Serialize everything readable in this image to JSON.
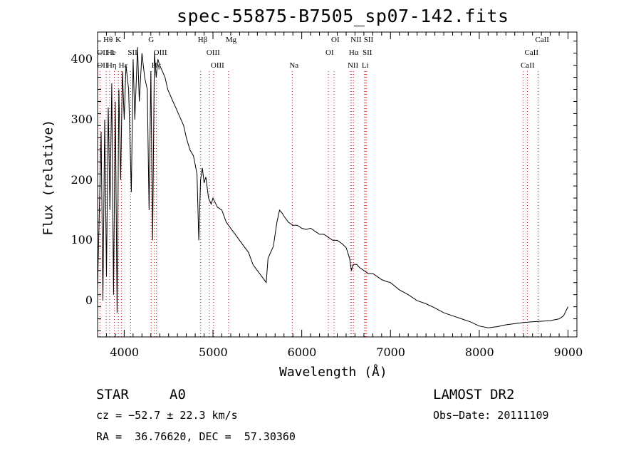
{
  "chart_data": {
    "type": "line",
    "title": "spec-55875-B7505_sp07-142.fits",
    "xlabel": "Wavelength (Å)",
    "ylabel": "Flux (relative)",
    "xlim": [
      3700,
      9100
    ],
    "ylim": [
      -60,
      445
    ],
    "x_ticks": [
      4000,
      5000,
      6000,
      7000,
      8000,
      9000
    ],
    "y_ticks": [
      0,
      100,
      200,
      300,
      400
    ],
    "grid": false,
    "series": [
      {
        "x": [
          3700,
          3740,
          3760,
          3780,
          3800,
          3820,
          3840,
          3860,
          3880,
          3900,
          3920,
          3940,
          3960,
          3980,
          4000,
          4020,
          4050,
          4080,
          4100,
          4120,
          4150,
          4170,
          4200,
          4230,
          4260,
          4280,
          4300,
          4320,
          4340,
          4360,
          4380,
          4400,
          4430,
          4460,
          4490,
          4520,
          4550,
          4580,
          4610,
          4640,
          4670,
          4700,
          4740,
          4780,
          4820,
          4840,
          4860,
          4880,
          4900,
          4920,
          4950,
          4980,
          5000,
          5050,
          5100,
          5150,
          5200,
          5250,
          5300,
          5350,
          5400,
          5450,
          5500,
          5550,
          5600,
          5620,
          5650,
          5680,
          5700,
          5720,
          5750,
          5780,
          5800,
          5850,
          5900,
          5950,
          6000,
          6050,
          6100,
          6150,
          6200,
          6250,
          6300,
          6350,
          6400,
          6450,
          6500,
          6540,
          6560,
          6580,
          6620,
          6650,
          6700,
          6750,
          6800,
          6850,
          6900,
          6950,
          7000,
          7100,
          7200,
          7300,
          7400,
          7500,
          7600,
          7700,
          7800,
          7900,
          8000,
          8100,
          8200,
          8300,
          8400,
          8500,
          8600,
          8700,
          8800,
          8900,
          8950,
          9000
        ],
        "y": [
          20,
          280,
          0,
          300,
          40,
          320,
          150,
          360,
          10,
          330,
          -20,
          350,
          200,
          380,
          300,
          390,
          350,
          180,
          400,
          300,
          420,
          330,
          410,
          370,
          350,
          150,
          380,
          100,
          410,
          370,
          400,
          390,
          380,
          370,
          350,
          340,
          330,
          320,
          310,
          300,
          290,
          270,
          250,
          240,
          210,
          100,
          200,
          220,
          195,
          205,
          170,
          160,
          170,
          155,
          150,
          130,
          120,
          110,
          100,
          90,
          80,
          60,
          50,
          40,
          30,
          70,
          80,
          90,
          110,
          130,
          150,
          145,
          140,
          130,
          125,
          125,
          120,
          118,
          120,
          115,
          110,
          110,
          105,
          100,
          100,
          95,
          88,
          70,
          50,
          60,
          60,
          55,
          50,
          45,
          45,
          40,
          35,
          32,
          30,
          18,
          10,
          0,
          -5,
          -12,
          -20,
          -25,
          -30,
          -35,
          -42,
          -45,
          -43,
          -40,
          -38,
          -36,
          -35,
          -34,
          -33,
          -30,
          -25,
          -10
        ]
      }
    ],
    "emission_lines": [
      {
        "label": "Hθ",
        "x": 3797,
        "row": 1
      },
      {
        "label": "K",
        "x": 3934,
        "row": 1
      },
      {
        "label": "G",
        "x": 4304,
        "row": 1
      },
      {
        "label": "Hβ",
        "x": 4861,
        "row": 1
      },
      {
        "label": "Mg",
        "x": 5175,
        "row": 1
      },
      {
        "label": "OI",
        "x": 6364,
        "row": 1
      },
      {
        "label": "NII",
        "x": 6583,
        "row": 1
      },
      {
        "label": "SII",
        "x": 6731,
        "row": 1
      },
      {
        "label": "CaII",
        "x": 8662,
        "row": 1
      },
      {
        "label": "OII",
        "x": 3727,
        "row": 2
      },
      {
        "label": "He",
        "x": 3835,
        "row": 2
      },
      {
        "label": "I",
        "x": 3889,
        "row": 2
      },
      {
        "label": "SII",
        "x": 4072,
        "row": 2
      },
      {
        "label": "OIII",
        "x": 4363,
        "row": 2
      },
      {
        "label": "OIII",
        "x": 4959,
        "row": 2
      },
      {
        "label": "OI",
        "x": 6300,
        "row": 2
      },
      {
        "label": "Hα",
        "x": 6563,
        "row": 2
      },
      {
        "label": "SII",
        "x": 6717,
        "row": 2
      },
      {
        "label": "CaII",
        "x": 8542,
        "row": 2
      },
      {
        "label": "OII",
        "x": 3727,
        "row": 3
      },
      {
        "label": "Hη",
        "x": 3835,
        "row": 3
      },
      {
        "label": "Hε",
        "x": 3970,
        "row": 3
      },
      {
        "label": "Hγ",
        "x": 4340,
        "row": 3
      },
      {
        "label": "OIII",
        "x": 5007,
        "row": 3
      },
      {
        "label": "Na",
        "x": 5893,
        "row": 3
      },
      {
        "label": "NII",
        "x": 6548,
        "row": 3
      },
      {
        "label": "Li",
        "x": 6708,
        "row": 3
      },
      {
        "label": "CaII",
        "x": 8498,
        "row": 3
      }
    ]
  },
  "footer": {
    "object_class": "STAR",
    "subclass": "A0",
    "redshift": "cz = −52.7 ± 22.3 km/s",
    "coords": "RA =  36.76620, DEC =  57.30360",
    "survey": "LAMOST DR2",
    "obs_date": "Obs−Date: 20111109"
  },
  "colors": {
    "spectrum": "#000000",
    "line_markers": "#cc0000"
  }
}
